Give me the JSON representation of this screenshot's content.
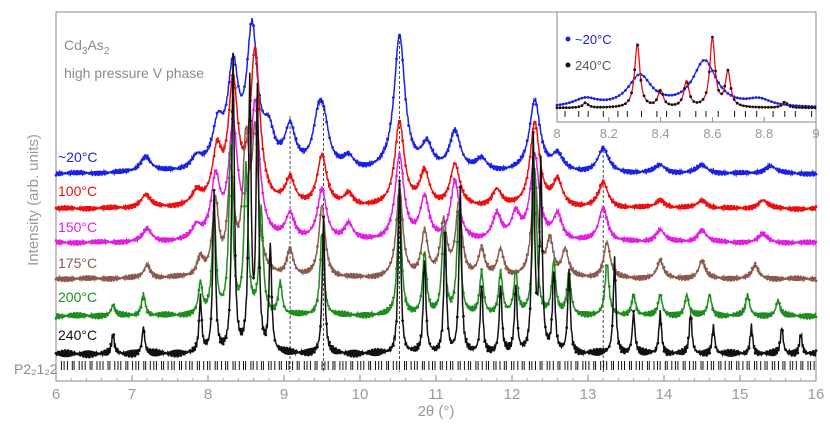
{
  "chart_data": {
    "type": "line",
    "annotations": {
      "compound_main": "Cd",
      "compound_sub1": "3",
      "compound_mid": "As",
      "compound_sub2": "2",
      "phase": "high pressure V phase",
      "space_group": "P2₂1₂2"
    },
    "xlabel": "2θ (°)",
    "ylabel": "Intensity (arb. units)",
    "xlim": [
      6,
      16
    ],
    "x_ticks": [
      "6",
      "7",
      "8",
      "9",
      "10",
      "11",
      "12",
      "13",
      "14",
      "15",
      "16"
    ],
    "series": [
      {
        "name": "~20°C",
        "color": "#1a22e0",
        "marker": "#1a22e0",
        "peaks": [
          [
            7.18,
            2
          ],
          [
            7.85,
            1.5
          ],
          [
            8.13,
            5
          ],
          [
            8.33,
            12
          ],
          [
            8.58,
            17
          ],
          [
            8.8,
            4
          ],
          [
            9.08,
            5
          ],
          [
            9.45,
            5
          ],
          [
            9.52,
            5
          ],
          [
            9.85,
            1.5
          ],
          [
            10.52,
            17
          ],
          [
            10.88,
            3
          ],
          [
            11.25,
            5
          ],
          [
            11.6,
            1.5
          ],
          [
            12.3,
            9
          ],
          [
            12.6,
            2
          ],
          [
            13.2,
            3
          ],
          [
            13.95,
            1
          ],
          [
            14.5,
            1
          ],
          [
            15.4,
            1
          ]
        ]
      },
      {
        "name": "100°C",
        "color": "#e81010",
        "marker": "#e81010",
        "peaks": [
          [
            7.18,
            1.5
          ],
          [
            7.85,
            1.5
          ],
          [
            8.12,
            6
          ],
          [
            8.33,
            14
          ],
          [
            8.62,
            18
          ],
          [
            9.08,
            3
          ],
          [
            9.5,
            6
          ],
          [
            9.85,
            1.5
          ],
          [
            10.52,
            10
          ],
          [
            10.85,
            4
          ],
          [
            11.25,
            5
          ],
          [
            11.8,
            2
          ],
          [
            12.3,
            10
          ],
          [
            12.6,
            3
          ],
          [
            13.2,
            3
          ],
          [
            13.95,
            1
          ],
          [
            14.5,
            1
          ],
          [
            15.3,
            1
          ]
        ]
      },
      {
        "name": "150°C",
        "color": "#e020e0",
        "marker": "#e020e0",
        "peaks": [
          [
            7.2,
            1.5
          ],
          [
            7.85,
            1.5
          ],
          [
            8.1,
            7
          ],
          [
            8.33,
            13
          ],
          [
            8.62,
            16
          ],
          [
            9.08,
            3
          ],
          [
            9.5,
            6
          ],
          [
            9.85,
            2
          ],
          [
            10.52,
            10
          ],
          [
            10.85,
            5
          ],
          [
            11.25,
            7
          ],
          [
            11.8,
            3
          ],
          [
            12.05,
            3
          ],
          [
            12.3,
            10
          ],
          [
            12.6,
            3
          ],
          [
            13.2,
            4
          ],
          [
            13.95,
            1.5
          ],
          [
            14.5,
            1.5
          ],
          [
            15.3,
            1
          ]
        ]
      },
      {
        "name": "175°C",
        "color": "#8a5a4e",
        "marker": "#8a5a4e",
        "peaks": [
          [
            7.2,
            1.5
          ],
          [
            7.9,
            2
          ],
          [
            8.1,
            8
          ],
          [
            8.3,
            11
          ],
          [
            8.5,
            14
          ],
          [
            8.62,
            15
          ],
          [
            9.08,
            3
          ],
          [
            9.5,
            8
          ],
          [
            10.52,
            10
          ],
          [
            10.85,
            5
          ],
          [
            11.1,
            6
          ],
          [
            11.3,
            8
          ],
          [
            11.6,
            3
          ],
          [
            11.85,
            3
          ],
          [
            12.3,
            11
          ],
          [
            12.5,
            4
          ],
          [
            12.7,
            3
          ],
          [
            13.25,
            4
          ],
          [
            13.95,
            2
          ],
          [
            14.5,
            2
          ],
          [
            15.2,
            1.5
          ]
        ]
      },
      {
        "name": "200°C",
        "color": "#1e8c1e",
        "marker": "#1e8c1e",
        "peaks": [
          [
            6.75,
            1
          ],
          [
            7.15,
            2
          ],
          [
            7.9,
            3
          ],
          [
            8.08,
            10
          ],
          [
            8.3,
            16
          ],
          [
            8.5,
            14
          ],
          [
            8.7,
            10
          ],
          [
            8.95,
            3
          ],
          [
            9.5,
            8
          ],
          [
            10.52,
            12
          ],
          [
            10.85,
            6
          ],
          [
            11.1,
            8
          ],
          [
            11.3,
            10
          ],
          [
            11.6,
            4
          ],
          [
            11.85,
            4
          ],
          [
            12.05,
            4
          ],
          [
            12.3,
            14
          ],
          [
            12.55,
            5
          ],
          [
            12.75,
            4
          ],
          [
            13.25,
            5
          ],
          [
            13.6,
            2
          ],
          [
            13.95,
            2
          ],
          [
            14.3,
            2
          ],
          [
            14.6,
            2
          ],
          [
            15.1,
            2
          ],
          [
            15.5,
            1.5
          ]
        ]
      },
      {
        "name": "240°C",
        "color": "#111111",
        "marker": "#111111",
        "peaks": [
          [
            6.75,
            1.5
          ],
          [
            7.15,
            2
          ],
          [
            7.9,
            4
          ],
          [
            8.08,
            12
          ],
          [
            8.33,
            22
          ],
          [
            8.55,
            20
          ],
          [
            8.65,
            19
          ],
          [
            8.82,
            8
          ],
          [
            9.52,
            10
          ],
          [
            10.52,
            13
          ],
          [
            10.85,
            7
          ],
          [
            11.12,
            9
          ],
          [
            11.32,
            12
          ],
          [
            11.6,
            5
          ],
          [
            11.85,
            5
          ],
          [
            12.05,
            5
          ],
          [
            12.28,
            16
          ],
          [
            12.38,
            14
          ],
          [
            12.55,
            6
          ],
          [
            12.75,
            6
          ],
          [
            13.35,
            7
          ],
          [
            13.6,
            3
          ],
          [
            13.95,
            3
          ],
          [
            14.35,
            3
          ],
          [
            14.65,
            2
          ],
          [
            15.15,
            2
          ],
          [
            15.55,
            2
          ],
          [
            15.8,
            1.5
          ]
        ]
      }
    ],
    "reference_lines_x": [
      9.08,
      9.52,
      10.52,
      13.2
    ],
    "tick_marks_series": "P2₂1₂2",
    "inset": {
      "xlim": [
        8,
        9
      ],
      "x_ticks": [
        "8",
        "8.2",
        "8.4",
        "8.6",
        "8.8",
        "9"
      ],
      "series": [
        {
          "name": "~20°C",
          "color": "#1a22e0"
        },
        {
          "name": "240°C",
          "color": "#111111"
        }
      ]
    }
  }
}
